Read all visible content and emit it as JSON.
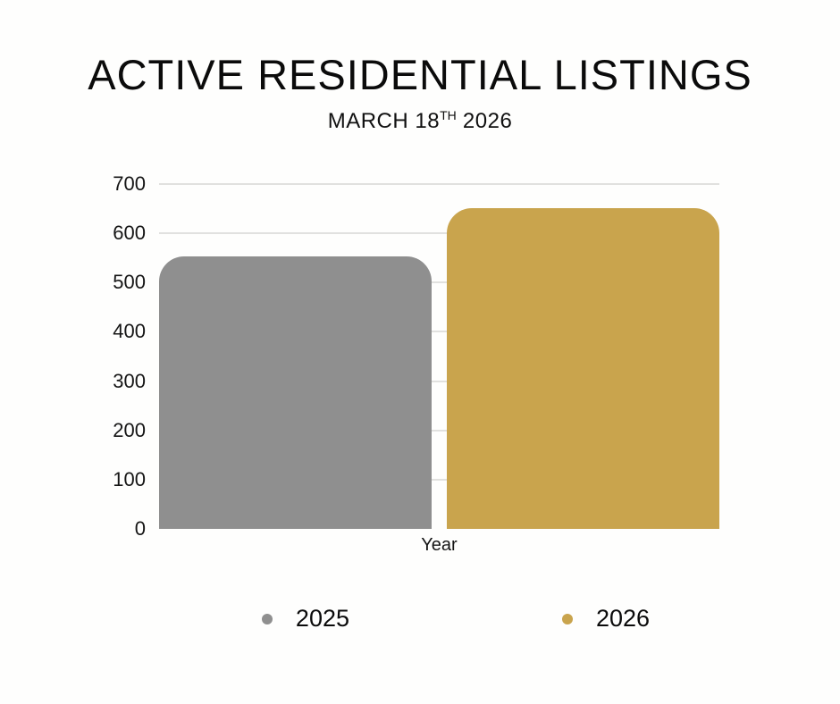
{
  "header": {
    "title": "ACTIVE RESIDENTIAL LISTINGS",
    "subtitle": {
      "prefix": "MARCH 18",
      "superscript": "TH",
      "suffix": " 2026"
    }
  },
  "chart_data": {
    "type": "bar",
    "title": "ACTIVE RESIDENTIAL LISTINGS",
    "subtitle": "MARCH 18TH 2026",
    "categories": [
      "Year"
    ],
    "series": [
      {
        "name": "2025",
        "values": [
          553
        ],
        "color": "#8F8F8F"
      },
      {
        "name": "2026",
        "values": [
          651
        ],
        "color": "#C9A44D"
      }
    ],
    "xlabel": "Year",
    "ylabel": "",
    "ylim": [
      0,
      700
    ],
    "yticks": [
      0,
      100,
      200,
      300,
      400,
      500,
      600,
      700
    ],
    "grid": true,
    "gridline_color": "#E1E1DF",
    "legend_position": "bottom",
    "background_color": "#FEFEFD"
  }
}
